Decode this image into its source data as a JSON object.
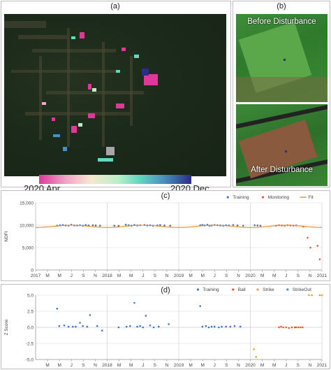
{
  "panels": {
    "a": {
      "label": "(a)",
      "colorbar": {
        "start_label": "2020 Apr.",
        "end_label": "2020 Dec."
      }
    },
    "b": {
      "label": "(b)",
      "before_caption": "Before Disturbance",
      "after_caption": "After Disturbance"
    },
    "c": {
      "label": "(c)"
    },
    "d": {
      "label": "(d)"
    }
  },
  "colors": {
    "training": "#4472c4",
    "monitoring": "#e8572d",
    "fit": "#f08a1e",
    "ball": "#e8572d",
    "strike": "#f0a020",
    "strikeout": "#3d8fd6"
  },
  "chart_data": [
    {
      "type": "scatter",
      "title": "",
      "xlabel": "",
      "ylabel": "NDFI",
      "ylim": [
        0,
        15000
      ],
      "yticks": [
        "15,000",
        "10,000",
        "5,000",
        "0"
      ],
      "xticks": [
        "2017",
        "M",
        "M",
        "J",
        "S",
        "N",
        "2018",
        "M",
        "M",
        "J",
        "S",
        "N",
        "2019",
        "M",
        "M",
        "J",
        "S",
        "N",
        "2020",
        "M",
        "M",
        "J",
        "S",
        "N",
        "2021"
      ],
      "legend": {
        "position": "top-right",
        "entries": [
          "Training",
          "Monitoring",
          "Fit"
        ]
      },
      "series": [
        {
          "name": "Training",
          "kind": "points",
          "x": [
            2017.3,
            2017.34,
            2017.38,
            2017.42,
            2017.46,
            2017.5,
            2017.54,
            2017.58,
            2017.62,
            2017.66,
            2017.7,
            2017.74,
            2017.8,
            2017.84,
            2017.9,
            2018.1,
            2018.16,
            2018.26,
            2018.3,
            2018.34,
            2018.38,
            2018.42,
            2018.46,
            2018.52,
            2018.56,
            2018.6,
            2018.64,
            2018.7,
            2018.74,
            2018.8,
            2018.88,
            2019.3,
            2019.33,
            2019.36,
            2019.4,
            2019.43,
            2019.46,
            2019.5,
            2019.54,
            2019.58,
            2019.62,
            2019.66,
            2019.7,
            2019.76,
            2019.82,
            2019.9,
            2020.06,
            2020.1,
            2020.14
          ],
          "y": [
            9900,
            10000,
            10050,
            9950,
            9900,
            10100,
            9950,
            9950,
            10000,
            9900,
            10050,
            9950,
            10000,
            9950,
            9900,
            9900,
            9850,
            10100,
            10000,
            9900,
            10050,
            9950,
            10000,
            10050,
            9950,
            10000,
            9900,
            9950,
            10050,
            9950,
            9900,
            10000,
            10050,
            9950,
            10100,
            9900,
            9950,
            10050,
            10000,
            9950,
            9900,
            10000,
            9950,
            10050,
            9950,
            9900,
            10000,
            9950,
            9900
          ]
        },
        {
          "name": "Monitoring",
          "kind": "points",
          "x": [
            2020.36,
            2020.4,
            2020.44,
            2020.48,
            2020.52,
            2020.56,
            2020.6,
            2020.64,
            2020.74,
            2020.8,
            2020.84,
            2020.94,
            2020.97
          ],
          "y": [
            9900,
            10000,
            9950,
            9900,
            10000,
            9950,
            9900,
            9950,
            9700,
            7200,
            5000,
            5400,
            2400
          ]
        },
        {
          "name": "Fit",
          "kind": "curve",
          "mean": 9750,
          "amplitude": 250,
          "x_range": [
            2017.0,
            2021.0
          ]
        }
      ]
    },
    {
      "type": "scatter",
      "title": "",
      "xlabel": "",
      "ylabel": "Z Score",
      "ylim": [
        -5.0,
        5.0
      ],
      "yticks": [
        "5.0",
        "2.5",
        "0.0",
        "-2.5",
        "-5.0"
      ],
      "xticks": [
        "M",
        "M",
        "J",
        "S",
        "N",
        "2018",
        "M",
        "M",
        "J",
        "S",
        "N",
        "2019",
        "M",
        "M",
        "J",
        "S",
        "N",
        "2020",
        "M",
        "M",
        "J",
        "S",
        "N",
        "2021"
      ],
      "legend": {
        "position": "top-right",
        "entries": [
          "Training",
          "Ball",
          "Strike",
          "StrikeOut"
        ]
      },
      "series": [
        {
          "name": "Training",
          "kind": "points",
          "x": [
            2017.3,
            2017.33,
            2017.4,
            2017.46,
            2017.52,
            2017.56,
            2017.62,
            2017.66,
            2017.72,
            2017.76,
            2017.86,
            2017.93,
            2018.16,
            2018.27,
            2018.32,
            2018.38,
            2018.42,
            2018.46,
            2018.5,
            2018.54,
            2018.6,
            2018.65,
            2018.72,
            2018.86,
            2019.3,
            2019.33,
            2019.38,
            2019.42,
            2019.46,
            2019.5,
            2019.56,
            2019.6,
            2019.66,
            2019.72,
            2019.78,
            2019.86
          ],
          "y": [
            2.9,
            0.2,
            0.3,
            0.1,
            0.1,
            0.1,
            0.7,
            0.2,
            0.1,
            1.9,
            0.2,
            -0.5,
            0.0,
            0.1,
            0.2,
            3.8,
            0.1,
            0.2,
            0.0,
            1.8,
            0.3,
            0.0,
            0.1,
            0.5,
            3.3,
            0.1,
            0.2,
            0.0,
            0.1,
            0.1,
            0.0,
            0.1,
            0.1,
            0.1,
            0.2,
            0.1
          ]
        },
        {
          "name": "Ball",
          "kind": "points",
          "x": [
            2020.4,
            2020.43,
            2020.46,
            2020.5,
            2020.54,
            2020.58,
            2020.62,
            2020.64,
            2020.67,
            2020.7,
            2020.73
          ],
          "y": [
            0.0,
            0.1,
            0.0,
            0.0,
            -0.1,
            0.0,
            0.0,
            0.0,
            0.0,
            0.0,
            0.0
          ]
        },
        {
          "name": "Strike",
          "kind": "points",
          "x": [
            2020.05,
            2020.08,
            2020.82,
            2020.86,
            2020.97,
            2021.0
          ],
          "y": [
            -3.4,
            -4.6,
            5.0,
            5.0,
            5.0,
            5.0
          ]
        },
        {
          "name": "StrikeOut",
          "kind": "points",
          "x": [],
          "y": []
        }
      ]
    }
  ]
}
